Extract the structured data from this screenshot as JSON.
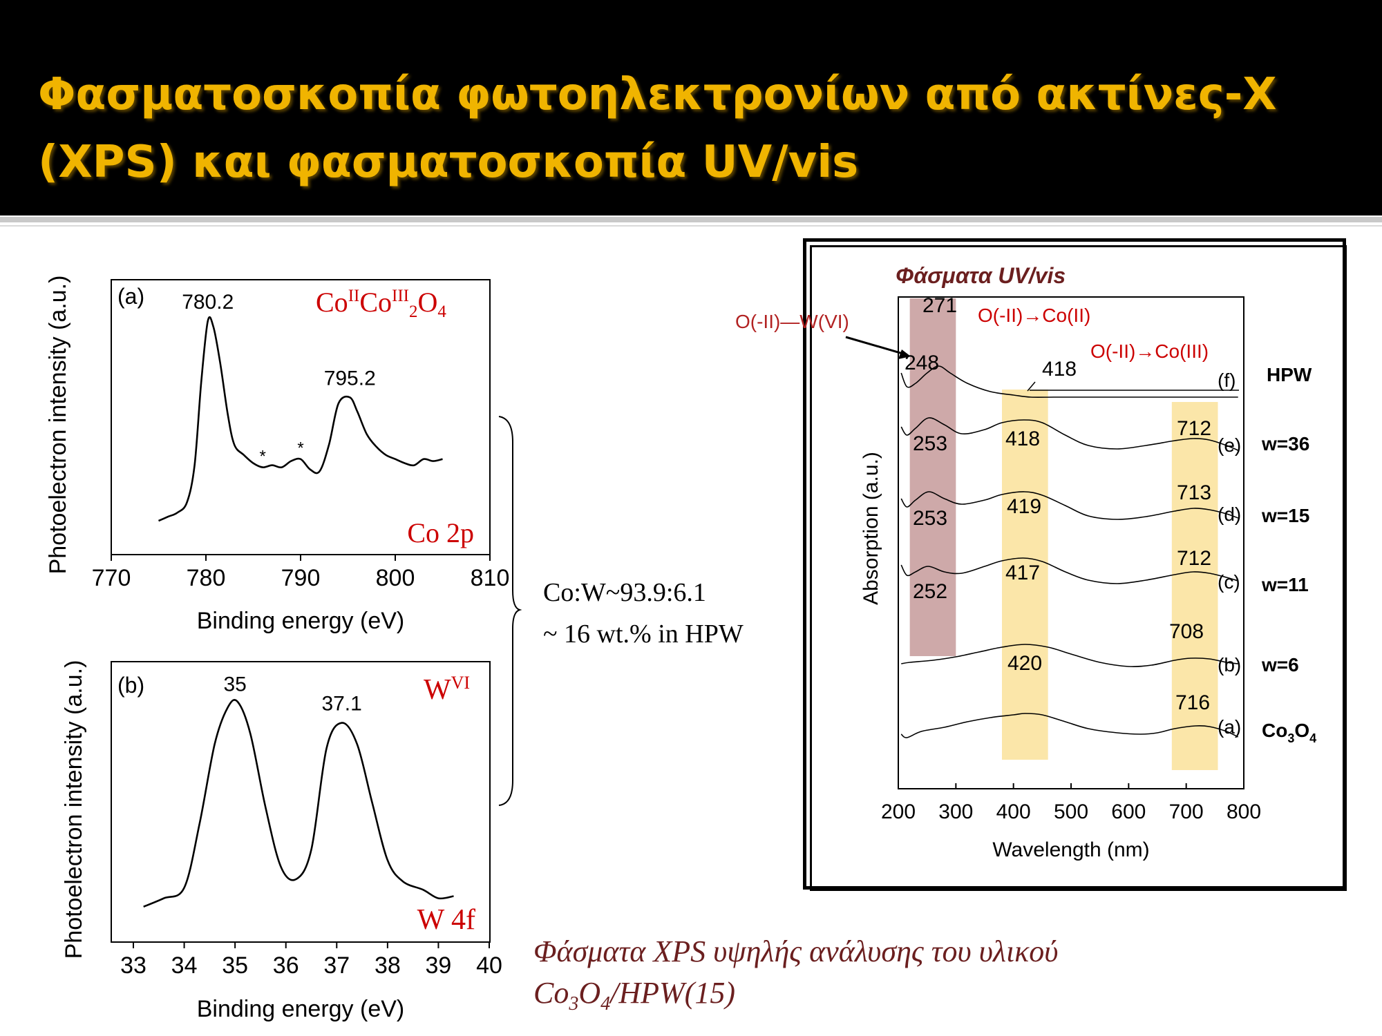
{
  "slide": {
    "title": "Φασματοσκοπία φωτοηλεκτρονίων από ακτίνες-Χ (XPS) και φασματοσκοπία UV/vis",
    "ratio_line1": "Co:W~93.9:6.1",
    "ratio_line2": "~ 16 wt.% in HPW",
    "caption_line1": "Φάσματα XPS υψηλής ανάλυσης του υλικού",
    "caption_line2_part1": "Co",
    "caption_line2_sub1": "3",
    "caption_line2_part2": "O",
    "caption_line2_sub2": "4",
    "caption_line2_part3": "/HPW(15)",
    "colors": {
      "title": "#f0b400",
      "red_text": "#cc0000",
      "dark_red": "#6b1f1f",
      "maroon_band": "#c9a0a0",
      "yellow_band": "#fbe3a0"
    }
  },
  "chart_data": [
    {
      "type": "line",
      "panel_label": "(a)",
      "xlabel": "Binding energy (eV)",
      "ylabel": "Photoelectron intensity (a.u.)",
      "xlim": [
        770,
        810
      ],
      "xticks": [
        770,
        780,
        790,
        800,
        810
      ],
      "compound": {
        "base": "Co",
        "sup1": "II",
        "mid": "Co",
        "sup2": "III",
        "sub1": "2",
        "end": "O",
        "sub2": "4"
      },
      "region_label": "Co 2p",
      "peaks": [
        {
          "x": 780.2,
          "label": "780.2"
        },
        {
          "x": 795.2,
          "label": "795.2"
        }
      ],
      "satellites": [
        {
          "x": 786,
          "label": "*"
        },
        {
          "x": 790,
          "label": "*"
        }
      ],
      "series": [
        {
          "x": [
            775,
            776,
            777,
            778,
            778.8,
            779.5,
            780.2,
            780.8,
            781.5,
            782.3,
            783,
            784,
            785,
            786,
            787,
            788,
            789,
            790,
            791,
            792,
            793,
            794,
            795.2,
            796,
            797,
            798,
            799,
            800,
            801,
            802,
            803,
            804,
            805
          ],
          "y": [
            0.03,
            0.05,
            0.07,
            0.12,
            0.3,
            0.7,
            1.0,
            0.97,
            0.8,
            0.55,
            0.4,
            0.35,
            0.31,
            0.29,
            0.3,
            0.29,
            0.32,
            0.33,
            0.28,
            0.27,
            0.4,
            0.6,
            0.63,
            0.56,
            0.45,
            0.39,
            0.35,
            0.33,
            0.31,
            0.3,
            0.33,
            0.32,
            0.33
          ]
        }
      ]
    },
    {
      "type": "line",
      "panel_label": "(b)",
      "xlabel": "Binding energy (eV)",
      "ylabel": "Photoelectron intensity (a.u.)",
      "xlim": [
        33,
        40
      ],
      "xticks": [
        33,
        34,
        35,
        36,
        37,
        38,
        39,
        40
      ],
      "oxidation_base": "W",
      "oxidation_sup": "VI",
      "region_label": "W 4f",
      "peaks": [
        {
          "x": 35,
          "label": "35"
        },
        {
          "x": 37.1,
          "label": "37.1"
        }
      ],
      "series": [
        {
          "x": [
            33.2,
            33.6,
            34.0,
            34.3,
            34.6,
            34.85,
            35.05,
            35.3,
            35.6,
            35.9,
            36.2,
            36.5,
            36.8,
            37.1,
            37.4,
            37.7,
            38.0,
            38.3,
            38.7,
            39.0,
            39.3
          ],
          "y": [
            0.03,
            0.07,
            0.12,
            0.42,
            0.8,
            0.97,
            1.0,
            0.85,
            0.5,
            0.22,
            0.16,
            0.3,
            0.78,
            0.9,
            0.8,
            0.52,
            0.25,
            0.15,
            0.11,
            0.07,
            0.08
          ]
        }
      ]
    },
    {
      "type": "line",
      "title": "Φάσματα UV/vis",
      "xlabel": "Wavelength (nm)",
      "ylabel": "Absorption (a.u.)",
      "xlim": [
        200,
        800
      ],
      "xticks": [
        200,
        300,
        400,
        500,
        600,
        700,
        800
      ],
      "annotations": [
        "O(-II)—W(VI)",
        "O(-II)→Co(II)",
        "O(-II)→Co(III)"
      ],
      "bands": [
        {
          "from": 220,
          "to": 300
        },
        {
          "from": 380,
          "to": 460
        },
        {
          "from": 675,
          "to": 755
        }
      ],
      "series": [
        {
          "id": "f",
          "name": "HPW",
          "tag": "(f)",
          "peak_labels": [
            "271",
            "248",
            "418"
          ],
          "x": [
            205,
            215,
            230,
            250,
            270,
            290,
            320,
            360,
            400,
            430,
            470,
            520,
            600,
            680,
            760,
            790
          ],
          "y": [
            1.85,
            1.65,
            1.7,
            1.85,
            1.95,
            1.85,
            1.7,
            1.58,
            1.53,
            1.5,
            1.5,
            1.5,
            1.5,
            1.5,
            1.5,
            1.5
          ]
        },
        {
          "id": "e",
          "name": "w=36",
          "tag": "(e)",
          "peak_labels": [
            "253",
            "418",
            "712"
          ],
          "x": [
            205,
            215,
            230,
            253,
            280,
            310,
            350,
            380,
            418,
            450,
            490,
            530,
            580,
            630,
            680,
            712,
            740,
            770,
            790
          ],
          "y": [
            1.32,
            1.2,
            1.3,
            1.45,
            1.35,
            1.22,
            1.28,
            1.38,
            1.42,
            1.38,
            1.2,
            1.05,
            1.0,
            1.05,
            1.12,
            1.15,
            1.13,
            1.05,
            0.98
          ]
        },
        {
          "id": "d",
          "name": "w=15",
          "tag": "(d)",
          "peak_labels": [
            "253",
            "419",
            "713"
          ],
          "x": [
            205,
            215,
            230,
            253,
            280,
            310,
            350,
            380,
            419,
            450,
            490,
            530,
            580,
            630,
            680,
            713,
            740,
            770,
            790
          ],
          "y": [
            1.0,
            0.88,
            0.98,
            1.1,
            1.0,
            0.92,
            0.98,
            1.06,
            1.1,
            1.05,
            0.9,
            0.75,
            0.7,
            0.74,
            0.82,
            0.86,
            0.84,
            0.78,
            0.72
          ]
        },
        {
          "id": "c",
          "name": "w=11",
          "tag": "(c)",
          "peak_labels": [
            "252",
            "417",
            "712"
          ],
          "x": [
            205,
            215,
            230,
            252,
            280,
            310,
            350,
            380,
            417,
            450,
            490,
            530,
            580,
            630,
            680,
            712,
            740,
            770,
            790
          ],
          "y": [
            0.7,
            0.55,
            0.6,
            0.68,
            0.6,
            0.58,
            0.68,
            0.76,
            0.8,
            0.75,
            0.6,
            0.48,
            0.43,
            0.48,
            0.56,
            0.6,
            0.58,
            0.52,
            0.47
          ]
        },
        {
          "id": "b",
          "name": "w=6",
          "tag": "(b)",
          "peak_labels": [
            "708"
          ],
          "x": [
            205,
            220,
            260,
            300,
            340,
            380,
            420,
            460,
            500,
            550,
            600,
            640,
            680,
            708,
            740,
            770,
            790
          ],
          "y": [
            0.28,
            0.3,
            0.33,
            0.38,
            0.45,
            0.52,
            0.56,
            0.52,
            0.42,
            0.3,
            0.24,
            0.26,
            0.33,
            0.36,
            0.35,
            0.3,
            0.28
          ]
        },
        {
          "id": "a",
          "name": "Co3O4",
          "name_base": "Co",
          "name_sub1": "3",
          "name_mid": "O",
          "name_sub2": "4",
          "tag": "(a)",
          "peak_labels": [
            "420",
            "716"
          ],
          "x": [
            205,
            215,
            240,
            280,
            320,
            360,
            400,
            420,
            450,
            490,
            530,
            580,
            620,
            650,
            680,
            716,
            740,
            770,
            790
          ],
          "y": [
            0.02,
            -0.03,
            0.06,
            0.12,
            0.2,
            0.26,
            0.3,
            0.32,
            0.3,
            0.2,
            0.1,
            0.04,
            0.02,
            0.04,
            0.1,
            0.14,
            0.13,
            0.06,
            -0.02
          ]
        }
      ]
    }
  ]
}
